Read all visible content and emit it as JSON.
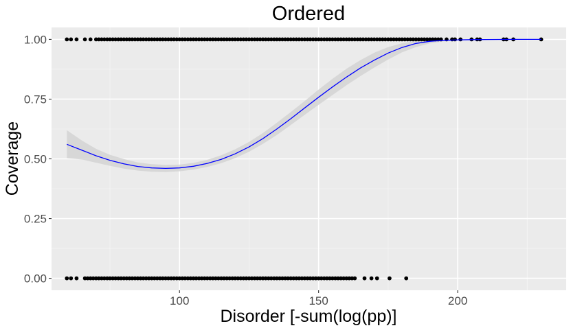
{
  "chart_data": {
    "type": "scatter",
    "title": "Ordered",
    "xlabel": "Disorder [-sum(log(pp)]",
    "ylabel": "Coverage",
    "xlim": [
      54,
      239
    ],
    "ylim": [
      -0.05,
      1.05
    ],
    "x_ticks": [
      100,
      150,
      200
    ],
    "y_ticks": [
      0.0,
      0.25,
      0.5,
      0.75,
      1.0
    ],
    "x_tick_labels": [
      "100",
      "150",
      "200"
    ],
    "y_tick_labels": [
      "0.00",
      "0.25",
      "0.50",
      "0.75",
      "1.00"
    ],
    "grid": true,
    "legend": "none",
    "colors": {
      "panel": "#ebebeb",
      "grid_major": "#ffffff",
      "points": "#000000",
      "fit_line": "#0000ff",
      "ribbon": "#d3d3d3"
    },
    "series": [
      {
        "kind": "points",
        "y": 1,
        "x": [
          59.5,
          61,
          63,
          66,
          68,
          70,
          71,
          72,
          73,
          74,
          75,
          76,
          77,
          78,
          79,
          80,
          81,
          82,
          83,
          84,
          85,
          86,
          87,
          88,
          89,
          90,
          91,
          92,
          93,
          94,
          95,
          96,
          97,
          98,
          99,
          100,
          101,
          102,
          103,
          104,
          105,
          106,
          107,
          108,
          109,
          110,
          111,
          112,
          113,
          114,
          115,
          116,
          117,
          118,
          119,
          120,
          121,
          122,
          123,
          124,
          125,
          126,
          127,
          128,
          129,
          130,
          131,
          132,
          133,
          134,
          135,
          136,
          137,
          138,
          139,
          140,
          141,
          142,
          143,
          144,
          145,
          146,
          147,
          148,
          149,
          150,
          151,
          152,
          153,
          154,
          155,
          156,
          157,
          158,
          159,
          160,
          161,
          162,
          163,
          164,
          165,
          166,
          167,
          168,
          169,
          170,
          171,
          172,
          173,
          174,
          175,
          176,
          177,
          178,
          179,
          180,
          181,
          182,
          183,
          184,
          185,
          186,
          187,
          188,
          189,
          190,
          191,
          192,
          193,
          194,
          196,
          198,
          199,
          201,
          205,
          207,
          208,
          216.5,
          217.5,
          220,
          230
        ]
      },
      {
        "kind": "points",
        "y": 0,
        "x": [
          59.5,
          61,
          63,
          66,
          67,
          68,
          69,
          70,
          71,
          72,
          73,
          74,
          75,
          76,
          77,
          78,
          79,
          80,
          81,
          82,
          83,
          84,
          85,
          86,
          87,
          88,
          89,
          90,
          91,
          92,
          93,
          94,
          95,
          96,
          97,
          98,
          99,
          100,
          101,
          102,
          103,
          104,
          105,
          106,
          107,
          108,
          109,
          110,
          111,
          112,
          113,
          114,
          115,
          116,
          117,
          118,
          119,
          120,
          121,
          122,
          123,
          124,
          125,
          126,
          127,
          128,
          129,
          130,
          131,
          132,
          133,
          134,
          135,
          136,
          137,
          138,
          139,
          140,
          141,
          142,
          143,
          144,
          145,
          146,
          147,
          148,
          149,
          150,
          151,
          152,
          153,
          154,
          155,
          156,
          157,
          158,
          159,
          160,
          161,
          162,
          163,
          166.5,
          169,
          171,
          175.5,
          181.5
        ]
      },
      {
        "kind": "smooth",
        "x": [
          59.5,
          65,
          70,
          75,
          80,
          85,
          90,
          95,
          100,
          105,
          110,
          115,
          120,
          125,
          130,
          135,
          140,
          145,
          150,
          155,
          160,
          165,
          170,
          175,
          180,
          185,
          190,
          195,
          200,
          205,
          210,
          215,
          220,
          225,
          230
        ],
        "y": [
          0.561,
          0.536,
          0.513,
          0.494,
          0.479,
          0.468,
          0.462,
          0.46,
          0.462,
          0.469,
          0.481,
          0.498,
          0.521,
          0.55,
          0.585,
          0.625,
          0.668,
          0.713,
          0.758,
          0.801,
          0.842,
          0.88,
          0.913,
          0.943,
          0.966,
          0.983,
          0.992,
          0.996,
          0.998,
          0.999,
          0.9995,
          0.9998,
          0.9999,
          1.0,
          1.0
        ],
        "ymin": [
          0.503,
          0.497,
          0.484,
          0.471,
          0.459,
          0.451,
          0.446,
          0.445,
          0.448,
          0.455,
          0.466,
          0.482,
          0.503,
          0.53,
          0.563,
          0.6,
          0.642,
          0.684,
          0.726,
          0.767,
          0.808,
          0.846,
          0.882,
          0.916,
          0.946,
          0.968,
          0.983,
          0.992,
          0.996,
          0.998,
          0.999,
          0.9995,
          0.9998,
          0.9999,
          1.0
        ],
        "ymax": [
          0.62,
          0.576,
          0.542,
          0.517,
          0.499,
          0.485,
          0.478,
          0.475,
          0.476,
          0.483,
          0.496,
          0.515,
          0.54,
          0.571,
          0.608,
          0.651,
          0.696,
          0.742,
          0.79,
          0.835,
          0.877,
          0.913,
          0.944,
          0.968,
          0.984,
          0.993,
          0.997,
          0.999,
          1.0,
          1.0,
          1.0,
          1.0,
          1.0,
          1.0,
          1.0
        ]
      }
    ]
  }
}
